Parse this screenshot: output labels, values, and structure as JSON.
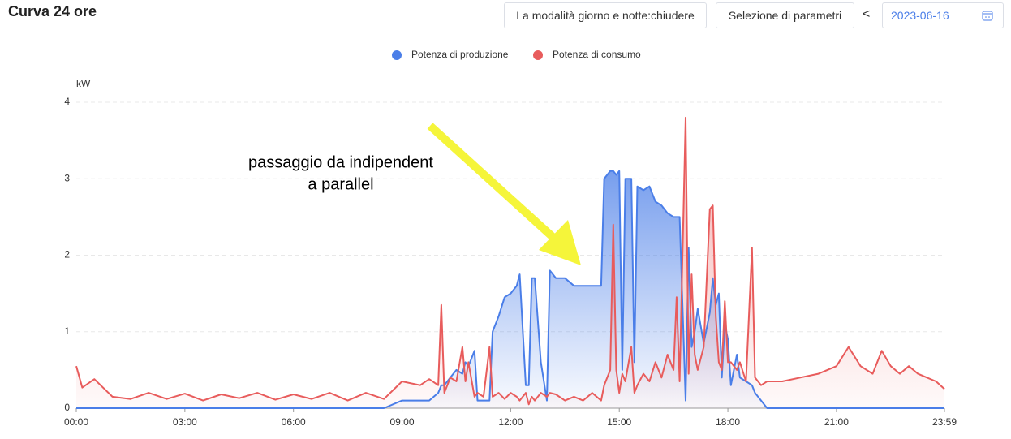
{
  "header": {
    "title": "Curva 24 ore",
    "buttons": [
      "La modalità giorno e notte:chiudere",
      "Selezione di parametri"
    ],
    "prev": "<",
    "date": "2023-06-16"
  },
  "chart_data": {
    "type": "line",
    "ylabel": "kW",
    "grid": true,
    "legend": "top",
    "area": true,
    "annotation": [
      "passaggio da indipendent",
      "a parallel"
    ],
    "xlim": [
      "00:00",
      "23:59"
    ],
    "xticks": [
      "00:00",
      "03:00",
      "06:00",
      "09:00",
      "12:00",
      "15:00",
      "18:00",
      "21:00",
      "23:59"
    ],
    "ylim": [
      0,
      4
    ],
    "yticks": [
      0,
      1,
      2,
      3,
      4
    ],
    "x": [
      "00:00",
      "00:10",
      "00:30",
      "01:00",
      "01:30",
      "02:00",
      "02:30",
      "03:00",
      "03:30",
      "04:00",
      "04:30",
      "05:00",
      "05:30",
      "06:00",
      "06:30",
      "07:00",
      "07:30",
      "08:00",
      "08:30",
      "09:00",
      "09:30",
      "09:45",
      "10:00",
      "10:05",
      "10:10",
      "10:20",
      "10:30",
      "10:40",
      "10:45",
      "10:50",
      "11:00",
      "11:05",
      "11:15",
      "11:25",
      "11:30",
      "11:40",
      "11:50",
      "12:00",
      "12:10",
      "12:15",
      "12:25",
      "12:30",
      "12:35",
      "12:40",
      "12:50",
      "13:00",
      "13:05",
      "13:15",
      "13:30",
      "13:45",
      "14:00",
      "14:15",
      "14:30",
      "14:35",
      "14:45",
      "14:50",
      "14:55",
      "15:00",
      "15:05",
      "15:10",
      "15:20",
      "15:25",
      "15:30",
      "15:40",
      "15:50",
      "16:00",
      "16:10",
      "16:20",
      "16:30",
      "16:35",
      "16:40",
      "16:50",
      "16:55",
      "17:00",
      "17:05",
      "17:10",
      "17:20",
      "17:30",
      "17:35",
      "17:40",
      "17:45",
      "17:50",
      "17:55",
      "18:00",
      "18:05",
      "18:15",
      "18:20",
      "18:30",
      "18:40",
      "18:45",
      "18:55",
      "19:05",
      "19:30",
      "20:00",
      "20:30",
      "21:00",
      "21:20",
      "21:40",
      "22:00",
      "22:15",
      "22:30",
      "22:45",
      "23:00",
      "23:15",
      "23:30",
      "23:45",
      "23:59"
    ],
    "series": [
      {
        "name": "Potenza di produzione",
        "color": "#4a7ee8",
        "values": [
          0,
          0,
          0,
          0,
          0,
          0,
          0,
          0,
          0,
          0,
          0,
          0,
          0,
          0,
          0,
          0,
          0,
          0,
          0,
          0.1,
          0.1,
          0.1,
          0.2,
          0.3,
          0.3,
          0.4,
          0.5,
          0.45,
          0.6,
          0.55,
          0.75,
          0.1,
          0.1,
          0.1,
          1.0,
          1.2,
          1.45,
          1.5,
          1.6,
          1.75,
          0.3,
          0.3,
          1.7,
          1.7,
          0.6,
          0.1,
          1.8,
          1.7,
          1.7,
          1.6,
          1.6,
          1.6,
          1.6,
          3.0,
          3.1,
          3.1,
          3.05,
          3.1,
          0.5,
          3.0,
          3.0,
          0.6,
          2.9,
          2.85,
          2.9,
          2.7,
          2.65,
          2.55,
          2.5,
          2.5,
          2.5,
          0.1,
          2.1,
          0.8,
          1.0,
          1.3,
          0.85,
          1.25,
          1.7,
          1.35,
          1.5,
          0.4,
          1.1,
          0.9,
          0.3,
          0.7,
          0.4,
          0.35,
          0.3,
          0.2,
          0.1,
          0,
          0,
          0,
          0,
          0,
          0,
          0,
          0,
          0,
          0,
          0,
          0,
          0,
          0,
          0,
          0
        ]
      },
      {
        "name": "Potenza di consumo",
        "color": "#e85c5c",
        "values": [
          0.55,
          0.27,
          0.38,
          0.15,
          0.12,
          0.2,
          0.12,
          0.19,
          0.1,
          0.18,
          0.13,
          0.2,
          0.11,
          0.18,
          0.12,
          0.2,
          0.1,
          0.2,
          0.12,
          0.35,
          0.3,
          0.38,
          0.3,
          1.35,
          0.2,
          0.4,
          0.35,
          0.8,
          0.35,
          0.6,
          0.15,
          0.2,
          0.15,
          0.8,
          0.15,
          0.2,
          0.12,
          0.2,
          0.15,
          0.1,
          0.2,
          0.05,
          0.15,
          0.1,
          0.2,
          0.15,
          0.2,
          0.18,
          0.1,
          0.15,
          0.1,
          0.2,
          0.1,
          0.3,
          0.5,
          2.4,
          0.5,
          0.2,
          0.45,
          0.35,
          0.8,
          0.2,
          0.3,
          0.45,
          0.35,
          0.6,
          0.4,
          0.7,
          0.5,
          1.45,
          0.35,
          3.8,
          0.45,
          1.75,
          0.7,
          0.5,
          0.8,
          2.6,
          2.65,
          1.2,
          0.6,
          0.5,
          1.4,
          0.6,
          0.6,
          0.5,
          0.6,
          0.35,
          2.1,
          0.4,
          0.3,
          0.35,
          0.35,
          0.4,
          0.45,
          0.55,
          0.8,
          0.55,
          0.45,
          0.75,
          0.55,
          0.45,
          0.55,
          0.45,
          0.4,
          0.35,
          0.25
        ]
      }
    ]
  }
}
